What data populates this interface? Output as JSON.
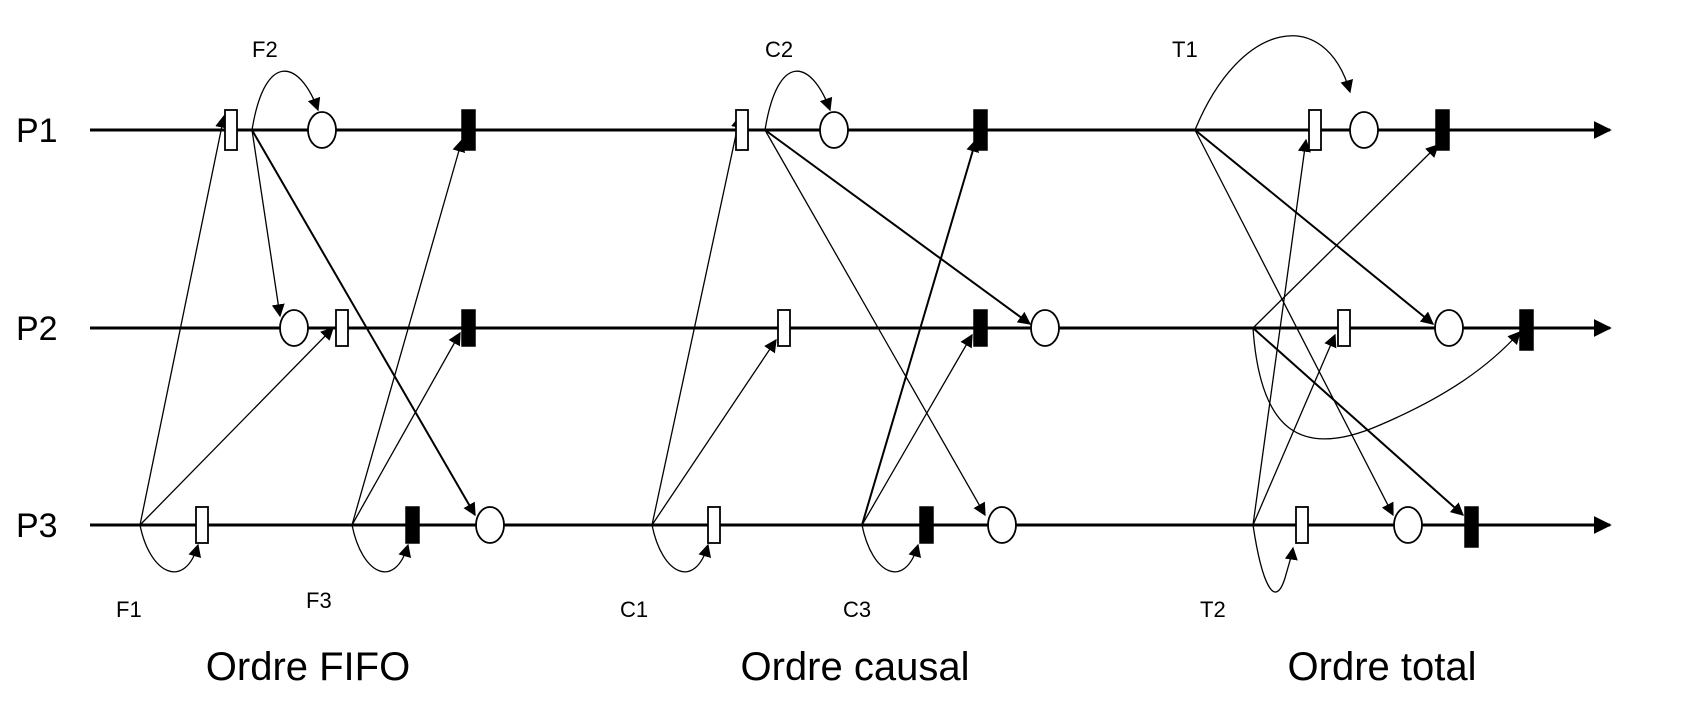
{
  "processes": [
    "P1",
    "P2",
    "P3"
  ],
  "sections": [
    {
      "caption": "Ordre FIFO",
      "labels": [
        "F1",
        "F2",
        "F3"
      ]
    },
    {
      "caption": "Ordre causal",
      "labels": [
        "C1",
        "C2",
        "C3"
      ]
    },
    {
      "caption": "Ordre total",
      "labels": [
        "T1",
        "T2"
      ]
    }
  ]
}
